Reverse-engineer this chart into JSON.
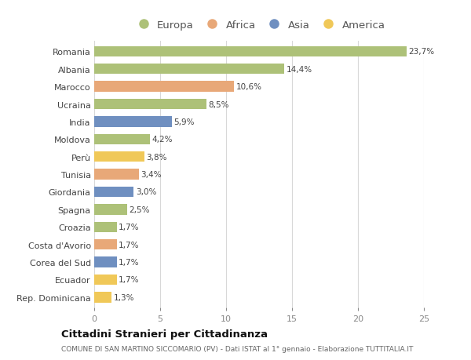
{
  "countries": [
    "Romania",
    "Albania",
    "Marocco",
    "Ucraina",
    "India",
    "Moldova",
    "Perù",
    "Tunisia",
    "Giordania",
    "Spagna",
    "Croazia",
    "Costa d'Avorio",
    "Corea del Sud",
    "Ecuador",
    "Rep. Dominicana"
  ],
  "values": [
    23.7,
    14.4,
    10.6,
    8.5,
    5.9,
    4.2,
    3.8,
    3.4,
    3.0,
    2.5,
    1.7,
    1.7,
    1.7,
    1.7,
    1.3
  ],
  "labels": [
    "23,7%",
    "14,4%",
    "10,6%",
    "8,5%",
    "5,9%",
    "4,2%",
    "3,8%",
    "3,4%",
    "3,0%",
    "2,5%",
    "1,7%",
    "1,7%",
    "1,7%",
    "1,7%",
    "1,3%"
  ],
  "continents": [
    "Europa",
    "Europa",
    "Africa",
    "Europa",
    "Asia",
    "Europa",
    "America",
    "Africa",
    "Asia",
    "Europa",
    "Europa",
    "Africa",
    "Asia",
    "America",
    "America"
  ],
  "colors": {
    "Europa": "#adc178",
    "Africa": "#e8a878",
    "Asia": "#6f8fc0",
    "America": "#f0c858"
  },
  "legend_order": [
    "Europa",
    "Africa",
    "Asia",
    "America"
  ],
  "title": "Cittadini Stranieri per Cittadinanza",
  "subtitle": "COMUNE DI SAN MARTINO SICCOMARIO (PV) - Dati ISTAT al 1° gennaio - Elaborazione TUTTITALIA.IT",
  "xlim": [
    0,
    25
  ],
  "xticks": [
    0,
    5,
    10,
    15,
    20,
    25
  ],
  "bg_color": "#ffffff",
  "grid_color": "#d8d8d8",
  "bar_height": 0.6
}
